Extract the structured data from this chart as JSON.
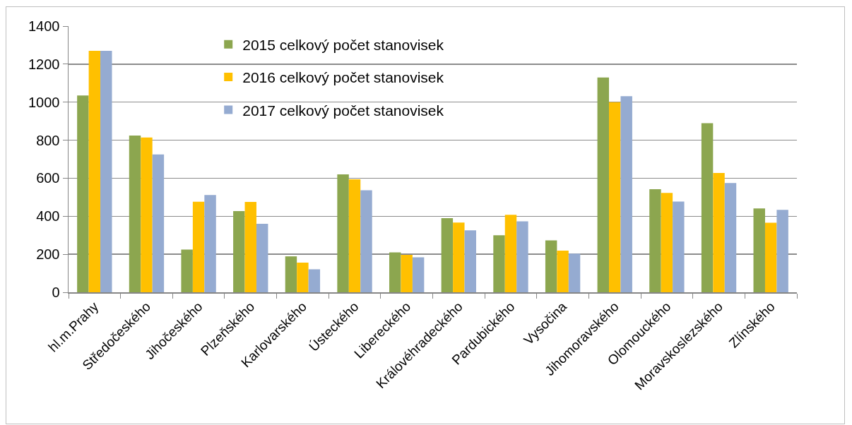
{
  "chart_data": {
    "type": "bar",
    "categories": [
      "hl.m.Prahy",
      "Středočeského",
      "Jihočeského",
      "Plzeňského",
      "Karlovarského",
      "Ústeckého",
      "Libereckého",
      "Královéhradeckého",
      "Pardubického",
      "Vysočina",
      "Jihomoravského",
      "Olomouckého",
      "Moravskoslezského",
      "Zlínského"
    ],
    "series": [
      {
        "name": "2015 celkový počet stanovisek",
        "color": "#8ca64f",
        "values": [
          1035,
          824,
          225,
          427,
          189,
          620,
          210,
          390,
          300,
          273,
          1130,
          542,
          889,
          441
        ]
      },
      {
        "name": "2016 celkový počet stanovisek",
        "color": "#ffc000",
        "values": [
          1270,
          814,
          476,
          475,
          156,
          594,
          197,
          367,
          408,
          219,
          1000,
          523,
          628,
          366
        ]
      },
      {
        "name": "2017 celkový počet stanovisek",
        "color": "#95abd1",
        "values": [
          1270,
          725,
          512,
          360,
          121,
          537,
          184,
          326,
          373,
          203,
          1031,
          477,
          575,
          434
        ]
      }
    ],
    "ylim": [
      0,
      1400
    ],
    "yticks": [
      0,
      200,
      400,
      600,
      800,
      1000,
      1200,
      1400
    ],
    "grid": "y",
    "legend": "top"
  }
}
